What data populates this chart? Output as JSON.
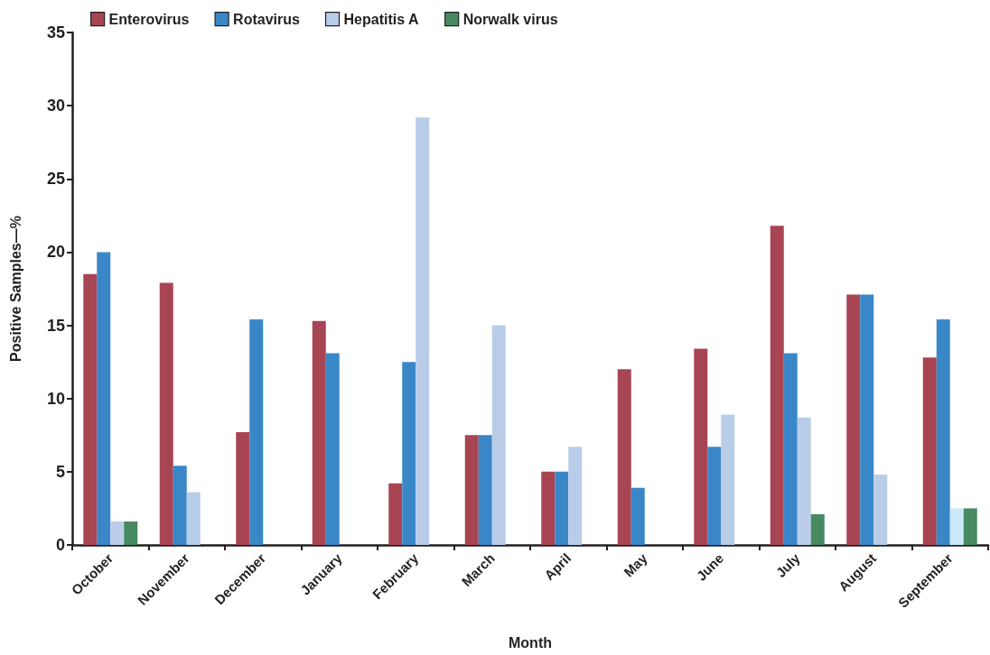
{
  "chart_data": {
    "type": "bar",
    "xlabel": "Month",
    "ylabel": "Positive Samples—%",
    "categories": [
      "October",
      "November",
      "December",
      "January",
      "February",
      "March",
      "April",
      "May",
      "June",
      "July",
      "August",
      "September"
    ],
    "series": [
      {
        "name": "Enterovirus",
        "color": "#a84553",
        "values": [
          18.5,
          17.9,
          7.7,
          15.3,
          4.2,
          7.5,
          5.0,
          12.0,
          13.4,
          21.8,
          17.1,
          12.8
        ]
      },
      {
        "name": "Rotavirus",
        "color": "#3a87c8",
        "values": [
          20.0,
          5.4,
          15.4,
          13.1,
          12.5,
          7.5,
          5.0,
          3.9,
          6.7,
          13.1,
          17.1,
          15.4
        ]
      },
      {
        "name": "Hepatitis A",
        "color": "#b9cde9",
        "colors": [
          "#b9cde9",
          "#b9cde9",
          null,
          null,
          "#b9cde9",
          "#b9cde9",
          "#b9cde9",
          null,
          "#b9cde9",
          "#b9cde9",
          "#b9cde9",
          "#cbe9f8"
        ],
        "values": [
          1.6,
          3.6,
          null,
          null,
          29.2,
          15.0,
          6.7,
          null,
          8.9,
          8.7,
          4.8,
          2.5
        ]
      },
      {
        "name": "Norwalk virus",
        "color": "#478a62",
        "values": [
          1.6,
          null,
          null,
          null,
          null,
          null,
          null,
          null,
          null,
          2.1,
          null,
          2.5
        ]
      }
    ],
    "ylim": [
      0,
      35
    ],
    "yticks": [
      0,
      5,
      10,
      15,
      20,
      25,
      30,
      35
    ],
    "grid": false,
    "legend": "top left"
  }
}
